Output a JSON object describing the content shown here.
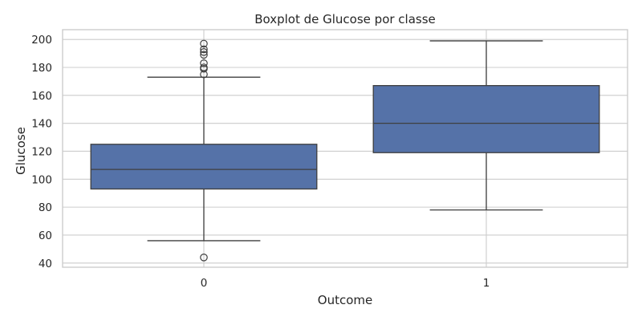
{
  "chart_data": {
    "type": "boxplot",
    "title": "Boxplot de Glucose por classe",
    "xlabel": "Outcome",
    "ylabel": "Glucose",
    "ylim": [
      37,
      207
    ],
    "yticks": [
      40,
      60,
      80,
      100,
      120,
      140,
      160,
      180,
      200
    ],
    "grid": true,
    "colors": {
      "box_fill": "#5572a8",
      "line": "#3f3f3f",
      "grid": "#cccccc",
      "text": "#262626"
    },
    "categories": [
      "0",
      "1"
    ],
    "boxes": [
      {
        "category": "0",
        "whisker_low": 56,
        "q1": 93,
        "median": 107,
        "q3": 125,
        "whisker_high": 173,
        "fliers": [
          44,
          175,
          179,
          180,
          183,
          189,
          191,
          193,
          197
        ]
      },
      {
        "category": "1",
        "whisker_low": 78,
        "q1": 119,
        "median": 140,
        "q3": 167,
        "whisker_high": 199,
        "fliers": []
      }
    ]
  }
}
